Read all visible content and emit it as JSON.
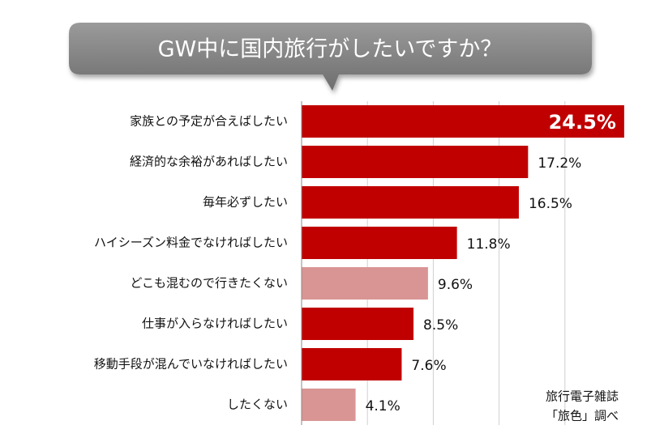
{
  "chart_data": {
    "type": "hbar",
    "title": "GW中に国内旅行がしたいですか？",
    "categories": [
      "家族との予定が合えばしたい",
      "経済的な余裕があればしたい",
      "毎年必ずしたい",
      "ハイシーズン料金でなければしたい",
      "どこも混むので行きたくない",
      "仕事が入らなければしたい",
      "移動手段が混んでいなければしたい",
      "したくない"
    ],
    "values": [
      24.5,
      17.2,
      16.5,
      11.8,
      9.6,
      8.5,
      7.6,
      4.1
    ],
    "value_labels": [
      "24.5%",
      "17.2%",
      "16.5%",
      "11.8%",
      "9.6%",
      "8.5%",
      "7.6%",
      "4.1%"
    ],
    "colors": [
      "#c00000",
      "#c00000",
      "#c00000",
      "#c00000",
      "#d99594",
      "#c00000",
      "#c00000",
      "#d99594"
    ],
    "xlim": [
      0,
      25
    ],
    "xticks": [
      5,
      10,
      15,
      20
    ],
    "grid": true,
    "source": [
      "旅行電子雑誌",
      "「旅色」調べ"
    ]
  }
}
